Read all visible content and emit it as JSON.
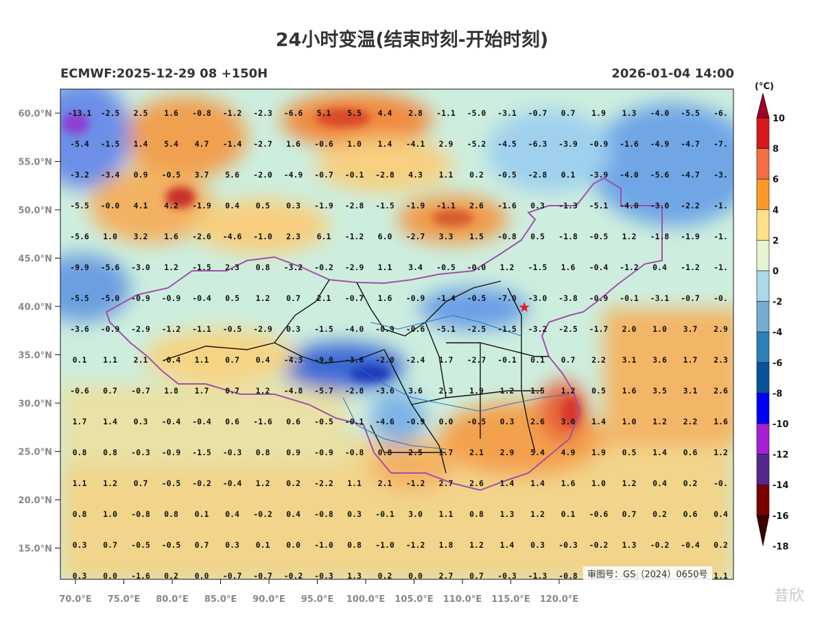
{
  "title": "24小时变温(结束时刻-开始时刻)",
  "subtitle_left": "ECMWF:2025-12-29 08 +150H",
  "subtitle_right": "2026-01-04 14:00",
  "approval_number": "审图号：GS（2024）0650号",
  "watermark_text": "昔欣",
  "colorbar": {
    "unit": "(°C)",
    "labels": [
      "10",
      "8",
      "6",
      "4",
      "2",
      "0",
      "-2",
      "-4",
      "-6",
      "-8",
      "-10",
      "-12",
      "-14",
      "-16",
      "-18"
    ],
    "colors": [
      "#a50026",
      "#d7191c",
      "#f46d43",
      "#fb9a29",
      "#fee08b",
      "#e6f5d0",
      "#abd9e9",
      "#74add1",
      "#2c7fb8",
      "#08519c",
      "#0000ff",
      "#a51fd6",
      "#54278f",
      "#7a0000",
      "#3b0000"
    ]
  },
  "axes": {
    "lon_labels": [
      "70.0°E",
      "75.0°E",
      "80.0°E",
      "85.0°E",
      "90.0°E",
      "95.0°E",
      "100.0°E",
      "105.0°E",
      "110.0°E",
      "115.0°E",
      "120.0°E"
    ],
    "lat_labels": [
      "60.0°N",
      "55.0°N",
      "50.0°N",
      "45.0°N",
      "40.0°N",
      "35.0°N",
      "30.0°N",
      "25.0°N",
      "20.0°N",
      "15.0°N"
    ]
  },
  "marker": {
    "name": "star",
    "color": "#e62020",
    "lon": 116.4,
    "lat": 39.9
  },
  "grid_values": [
    [
      "-13.1",
      "-2.5",
      "2.5",
      "1.6",
      "-0.8",
      "-1.2",
      "-2.3",
      "-6.6",
      "5.1",
      "5.5",
      "4.4",
      "2.8",
      "-1.1",
      "-5.0",
      "-3.1",
      "-0.7",
      "0.7",
      "1.9",
      "1.3",
      "-4.0",
      "-5.5",
      "-6."
    ],
    [
      "-5.4",
      "-1.5",
      "1.4",
      "5.4",
      "4.7",
      "-1.4",
      "-2.7",
      "1.6",
      "-0.6",
      "1.0",
      "1.4",
      "-4.1",
      "2.9",
      "-5.2",
      "-4.5",
      "-6.3",
      "-3.9",
      "-0.9",
      "-1.6",
      "-4.9",
      "-4.7",
      "-7."
    ],
    [
      "-3.2",
      "-3.4",
      "0.9",
      "-0.5",
      "3.7",
      "5.6",
      "-2.0",
      "-4.9",
      "-0.7",
      "-0.1",
      "-2.8",
      "4.3",
      "1.1",
      "0.2",
      "-0.5",
      "-2.8",
      "0.1",
      "-3.9",
      "-4.0",
      "-5.6",
      "-4.7",
      "-3."
    ],
    [
      "-5.5",
      "-0.0",
      "4.1",
      "4.2",
      "-1.9",
      "0.4",
      "0.5",
      "0.3",
      "-1.9",
      "-2.8",
      "-1.5",
      "-1.9",
      "-1.1",
      "2.6",
      "-1.6",
      "0.3",
      "-1.3",
      "-5.1",
      "-4.0",
      "-3.0",
      "-2.2",
      "-1."
    ],
    [
      "-5.6",
      "1.0",
      "3.2",
      "1.6",
      "-2.6",
      "-4.6",
      "-1.0",
      "2.3",
      "6.1",
      "-1.2",
      "6.0",
      "-2.7",
      "3.3",
      "1.5",
      "-0.8",
      "0.5",
      "-1.8",
      "-0.5",
      "1.2",
      "-1.8",
      "-1.9",
      "-1."
    ],
    [
      "-9.9",
      "-5.6",
      "-3.0",
      "1.2",
      "-1.5",
      "2.3",
      "0.8",
      "-3.2",
      "-0.2",
      "-2.9",
      "1.1",
      "3.4",
      "-0.5",
      "-0.0",
      "1.2",
      "-1.5",
      "1.6",
      "-0.4",
      "-1.2",
      "0.4",
      "-1.2",
      "-1."
    ],
    [
      "-5.5",
      "-5.0",
      "-0.9",
      "-0.9",
      "-0.4",
      "0.5",
      "1.2",
      "0.7",
      "2.1",
      "-0.7",
      "1.6",
      "-0.9",
      "-1.4",
      "-0.5",
      "-7.0",
      "-3.0",
      "-3.8",
      "-0.9",
      "-0.1",
      "-3.1",
      "-0.7",
      "-0."
    ],
    [
      "-3.6",
      "-0.9",
      "-2.9",
      "-1.2",
      "-1.1",
      "-0.5",
      "-2.9",
      "0.3",
      "-1.5",
      "-4.0",
      "-0.9",
      "-0.6",
      "-5.1",
      "-2.5",
      "-1.5",
      "-3.2",
      "-2.5",
      "-1.7",
      "2.0",
      "1.0",
      "3.7",
      "2.9"
    ],
    [
      "0.1",
      "1.1",
      "2.1",
      "-0.4",
      "1.1",
      "0.7",
      "0.4",
      "-4.3",
      "-9.0",
      "-3.6",
      "-2.0",
      "-2.4",
      "1.7",
      "-2.7",
      "-0.1",
      "0.1",
      "0.7",
      "2.2",
      "3.1",
      "3.6",
      "1.7",
      "2.3"
    ],
    [
      "-0.6",
      "0.7",
      "-0.7",
      "1.8",
      "1.7",
      "0.7",
      "1.2",
      "-4.8",
      "-5.7",
      "-2.8",
      "-3.6",
      "3.6",
      "2.3",
      "1.9",
      "1.2",
      "1.5",
      "1.2",
      "0.5",
      "1.6",
      "3.5",
      "3.1",
      "2.6"
    ],
    [
      "1.7",
      "1.4",
      "0.3",
      "-0.4",
      "-0.4",
      "0.6",
      "-1.6",
      "0.6",
      "-0.5",
      "-0.1",
      "-4.6",
      "-0.9",
      "0.0",
      "-0.5",
      "0.3",
      "2.6",
      "3.0",
      "1.4",
      "1.0",
      "1.2",
      "2.2",
      "1.6"
    ],
    [
      "0.8",
      "0.8",
      "-0.3",
      "-0.9",
      "-1.5",
      "-0.3",
      "0.8",
      "0.9",
      "-0.9",
      "-0.8",
      "0.8",
      "2.5",
      "1.7",
      "2.1",
      "2.9",
      "5.4",
      "4.9",
      "1.9",
      "0.5",
      "1.4",
      "0.6",
      "1.2"
    ],
    [
      "1.1",
      "1.2",
      "0.7",
      "-0.5",
      "-0.2",
      "-0.4",
      "1.2",
      "0.2",
      "-2.2",
      "1.1",
      "2.1",
      "-1.2",
      "2.7",
      "2.6",
      "1.4",
      "1.4",
      "1.6",
      "1.0",
      "1.2",
      "0.4",
      "0.2",
      "-0."
    ],
    [
      "0.8",
      "1.0",
      "-0.8",
      "0.8",
      "0.1",
      "0.4",
      "-0.2",
      "0.4",
      "-0.8",
      "0.3",
      "-0.1",
      "3.0",
      "1.1",
      "0.8",
      "1.3",
      "1.2",
      "0.1",
      "-0.6",
      "0.7",
      "0.2",
      "0.6",
      "0.4"
    ],
    [
      "0.3",
      "0.7",
      "-0.5",
      "-0.5",
      "0.7",
      "0.3",
      "0.1",
      "0.0",
      "-1.0",
      "0.8",
      "-1.0",
      "-1.2",
      "1.8",
      "1.2",
      "1.4",
      "0.3",
      "-0.3",
      "-0.2",
      "1.3",
      "-0.2",
      "-0.4",
      "0.2"
    ],
    [
      "0.3",
      "0.0",
      "-1.6",
      "0.2",
      "0.0",
      "-0.7",
      "-0.7",
      "-0.2",
      "-0.3",
      "1.3",
      "0.2",
      "0.0",
      "2.7",
      "0.7",
      "-0.3",
      "-1.3",
      "-0.8",
      "0.3",
      "-0.3",
      "1.1",
      "1.1",
      "1.1"
    ]
  ]
}
